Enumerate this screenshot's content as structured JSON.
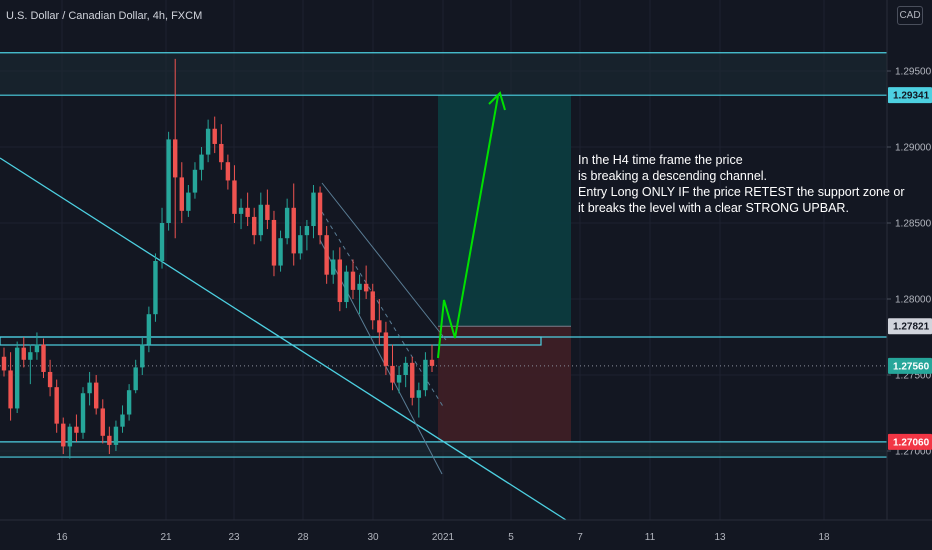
{
  "header": {
    "title": "U.S. Dollar / Canadian Dollar, 4h, FXCM",
    "currency_button": "CAD"
  },
  "annotation": {
    "lines": [
      "In the H4 time frame the price",
      "is breaking a descending channel.",
      "Entry Long ONLY IF the price RETEST the support zone or",
      "it breaks the level with a clear STRONG UPBAR."
    ]
  },
  "colors": {
    "background": "#131722",
    "bull": "#26a69a",
    "bear": "#ef5350",
    "level_line": "#4dd0e1",
    "target_zone": "#0c3b3f",
    "stop_zone": "#3d1f26",
    "arrow": "#00e000",
    "price_tag_green": "#26a69a",
    "price_tag_red": "#f23645"
  },
  "chart_data": {
    "type": "candlestick",
    "symbol": "USDCAD",
    "timeframe": "4h",
    "source": "FXCM",
    "y_axis_ticks": [
      "1.29500",
      "1.29000",
      "1.28500",
      "1.28000",
      "1.27500",
      "1.27000"
    ],
    "x_axis_ticks": [
      "16",
      "21",
      "23",
      "28",
      "30",
      "2021",
      "5",
      "7",
      "11",
      "13",
      "18"
    ],
    "price_tags": [
      {
        "label": "1.29341",
        "value": 1.29341,
        "style": "level"
      },
      {
        "label": "1.27821",
        "value": 1.27821,
        "style": "position"
      },
      {
        "label": "1.27560",
        "value": 1.2756,
        "style": "last-price"
      },
      {
        "label": "1.27060",
        "value": 1.2706,
        "style": "stop"
      }
    ],
    "horizontal_levels": [
      1.2962,
      1.29341,
      1.2775,
      1.2706,
      1.2696
    ],
    "long_position": {
      "entry": 1.27821,
      "target": 1.29341,
      "stop": 1.2706
    },
    "last_price": 1.2756,
    "candles_ohlc": [
      [
        1.2762,
        1.2768,
        1.2749,
        1.2753
      ],
      [
        1.2753,
        1.2765,
        1.272,
        1.2728
      ],
      [
        1.2728,
        1.2772,
        1.2725,
        1.2768
      ],
      [
        1.2768,
        1.2775,
        1.2755,
        1.276
      ],
      [
        1.276,
        1.277,
        1.2744,
        1.2765
      ],
      [
        1.2765,
        1.2778,
        1.276,
        1.277
      ],
      [
        1.277,
        1.2774,
        1.2748,
        1.2752
      ],
      [
        1.2752,
        1.276,
        1.2736,
        1.2742
      ],
      [
        1.2742,
        1.2747,
        1.2712,
        1.2718
      ],
      [
        1.2718,
        1.2722,
        1.2698,
        1.2703
      ],
      [
        1.2703,
        1.2718,
        1.2695,
        1.2716
      ],
      [
        1.2716,
        1.2724,
        1.2706,
        1.2712
      ],
      [
        1.2712,
        1.2742,
        1.2708,
        1.2738
      ],
      [
        1.2738,
        1.2752,
        1.273,
        1.2745
      ],
      [
        1.2745,
        1.275,
        1.2724,
        1.2728
      ],
      [
        1.2728,
        1.2734,
        1.2705,
        1.271
      ],
      [
        1.271,
        1.2716,
        1.2698,
        1.2704
      ],
      [
        1.2704,
        1.272,
        1.27,
        1.2716
      ],
      [
        1.2716,
        1.273,
        1.2712,
        1.2724
      ],
      [
        1.2724,
        1.2744,
        1.272,
        1.274
      ],
      [
        1.274,
        1.276,
        1.2738,
        1.2755
      ],
      [
        1.2755,
        1.2775,
        1.275,
        1.277
      ],
      [
        1.277,
        1.2795,
        1.2765,
        1.279
      ],
      [
        1.279,
        1.283,
        1.2785,
        1.2825
      ],
      [
        1.2825,
        1.286,
        1.282,
        1.285
      ],
      [
        1.285,
        1.291,
        1.2845,
        1.2905
      ],
      [
        1.2905,
        1.2958,
        1.284,
        1.288
      ],
      [
        1.288,
        1.289,
        1.285,
        1.2858
      ],
      [
        1.2858,
        1.2875,
        1.2854,
        1.287
      ],
      [
        1.287,
        1.289,
        1.2866,
        1.2885
      ],
      [
        1.2885,
        1.29,
        1.2878,
        1.2895
      ],
      [
        1.2895,
        1.2918,
        1.289,
        1.2912
      ],
      [
        1.2912,
        1.292,
        1.2896,
        1.2902
      ],
      [
        1.2902,
        1.2915,
        1.2885,
        1.289
      ],
      [
        1.289,
        1.2895,
        1.2872,
        1.2878
      ],
      [
        1.2878,
        1.2888,
        1.285,
        1.2856
      ],
      [
        1.2856,
        1.2866,
        1.2846,
        1.286
      ],
      [
        1.286,
        1.287,
        1.2848,
        1.2854
      ],
      [
        1.2854,
        1.286,
        1.2836,
        1.2842
      ],
      [
        1.2842,
        1.287,
        1.2838,
        1.2862
      ],
      [
        1.2862,
        1.2872,
        1.2846,
        1.2852
      ],
      [
        1.2852,
        1.2858,
        1.2815,
        1.2822
      ],
      [
        1.2822,
        1.2845,
        1.2818,
        1.284
      ],
      [
        1.284,
        1.2866,
        1.2836,
        1.286
      ],
      [
        1.286,
        1.2876,
        1.2822,
        1.283
      ],
      [
        1.283,
        1.2848,
        1.2826,
        1.2842
      ],
      [
        1.2842,
        1.2852,
        1.2832,
        1.2848
      ],
      [
        1.2848,
        1.2875,
        1.284,
        1.287
      ],
      [
        1.287,
        1.2874,
        1.2836,
        1.2842
      ],
      [
        1.2842,
        1.2848,
        1.281,
        1.2816
      ],
      [
        1.2816,
        1.2832,
        1.281,
        1.2826
      ],
      [
        1.2826,
        1.2834,
        1.2792,
        1.2798
      ],
      [
        1.2798,
        1.2822,
        1.2794,
        1.2818
      ],
      [
        1.2818,
        1.2826,
        1.28,
        1.2806
      ],
      [
        1.2806,
        1.2816,
        1.279,
        1.281
      ],
      [
        1.281,
        1.2822,
        1.28,
        1.2805
      ],
      [
        1.2805,
        1.281,
        1.278,
        1.2786
      ],
      [
        1.2786,
        1.28,
        1.277,
        1.2778
      ],
      [
        1.2778,
        1.2785,
        1.275,
        1.2756
      ],
      [
        1.2756,
        1.277,
        1.274,
        1.2745
      ],
      [
        1.2745,
        1.2756,
        1.2738,
        1.275
      ],
      [
        1.275,
        1.2762,
        1.2742,
        1.2758
      ],
      [
        1.2758,
        1.2762,
        1.273,
        1.2735
      ],
      [
        1.2735,
        1.2745,
        1.2722,
        1.274
      ],
      [
        1.274,
        1.2765,
        1.2736,
        1.276
      ],
      [
        1.276,
        1.277,
        1.2752,
        1.2756
      ]
    ]
  }
}
